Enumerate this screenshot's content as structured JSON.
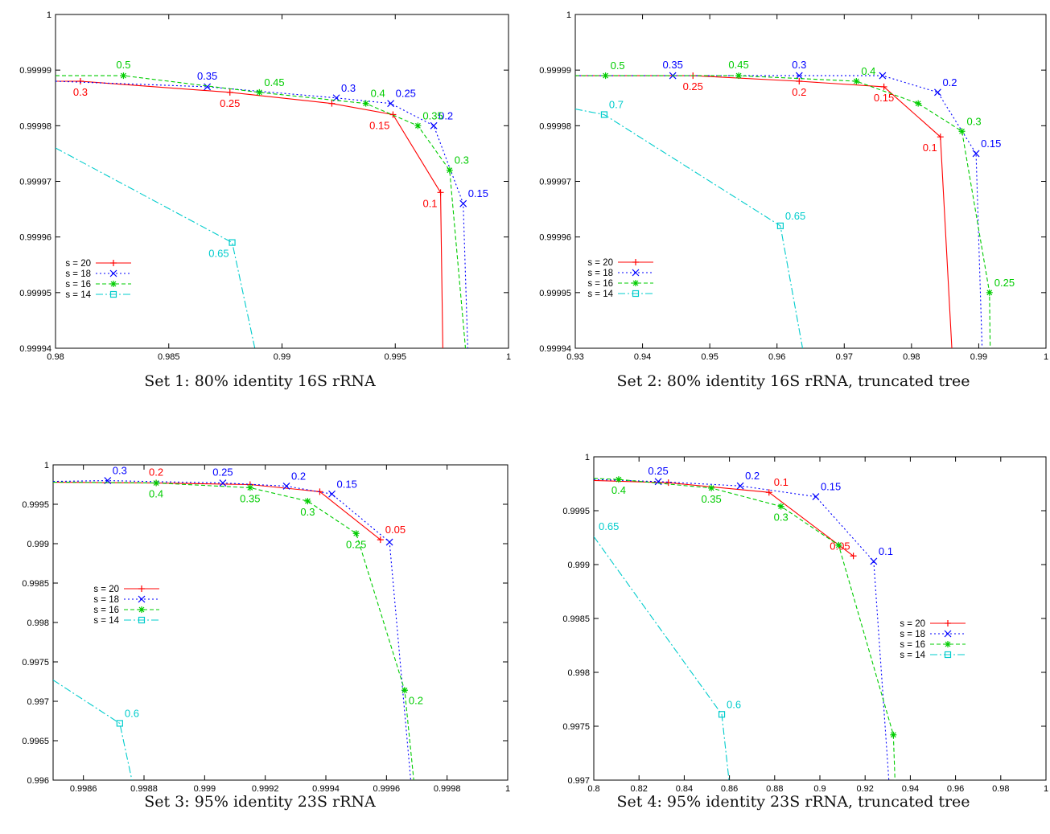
{
  "chart_data": [
    {
      "type": "line",
      "caption": "Set 1: 80% identity 16S rRNA",
      "xlim": [
        0.98,
        1
      ],
      "ylim": [
        0.99994,
        1
      ],
      "xticks": [
        "0.98",
        "0.985",
        "0.99",
        "0.995",
        "1"
      ],
      "yticks": [
        "0.99994",
        "0.99995",
        "0.99996",
        "0.99997",
        "0.99998",
        "0.99999",
        "1"
      ],
      "legend_position": "bottom-left",
      "series": [
        {
          "name": "s = 20",
          "color": "#ff0000",
          "marker": "plus",
          "points": [
            [
              0.98,
              0.999988
            ],
            [
              0.9811,
              0.999988
            ],
            [
              0.9877,
              0.999986
            ],
            [
              0.9922,
              0.999984
            ],
            [
              0.9949,
              0.999982
            ],
            [
              0.997,
              0.999968
            ],
            [
              0.9971,
              0.99994
            ]
          ],
          "labels": [
            {
              "i": 1,
              "text": "0.3",
              "pos": "below"
            },
            {
              "i": 2,
              "text": "0.25",
              "pos": "below"
            },
            {
              "i": 4,
              "text": "0.15",
              "pos": "below-left"
            },
            {
              "i": 5,
              "text": "0.1",
              "pos": "below-left"
            }
          ]
        },
        {
          "name": "s = 18",
          "color": "#0000ff",
          "marker": "x",
          "points": [
            [
              0.98,
              0.999988
            ],
            [
              0.9867,
              0.999987
            ],
            [
              0.9924,
              0.999985
            ],
            [
              0.9948,
              0.999984
            ],
            [
              0.9967,
              0.99998
            ],
            [
              0.998,
              0.999966
            ],
            [
              0.9982,
              0.99994
            ]
          ],
          "labels": [
            {
              "i": 1,
              "text": "0.35",
              "pos": "above"
            },
            {
              "i": 2,
              "text": "0.3",
              "pos": "above-right"
            },
            {
              "i": 3,
              "text": "0.25",
              "pos": "above-right"
            },
            {
              "i": 4,
              "text": "0.2",
              "pos": "above-right"
            },
            {
              "i": 5,
              "text": "0.15",
              "pos": "above-right"
            }
          ]
        },
        {
          "name": "s = 16",
          "color": "#00cc00",
          "marker": "star",
          "points": [
            [
              0.98,
              0.999989
            ],
            [
              0.983,
              0.999989
            ],
            [
              0.989,
              0.999986
            ],
            [
              0.9937,
              0.999984
            ],
            [
              0.996,
              0.99998
            ],
            [
              0.9974,
              0.999972
            ],
            [
              0.9981,
              0.99994
            ]
          ],
          "labels": [
            {
              "i": 1,
              "text": "0.5",
              "pos": "above"
            },
            {
              "i": 2,
              "text": "0.45",
              "pos": "above-right"
            },
            {
              "i": 3,
              "text": "0.4",
              "pos": "above-right"
            },
            {
              "i": 4,
              "text": "0.35",
              "pos": "above-right"
            },
            {
              "i": 5,
              "text": "0.3",
              "pos": "above-right"
            }
          ]
        },
        {
          "name": "s = 14",
          "color": "#00cccc",
          "marker": "square",
          "points": [
            [
              0.98,
              0.999976
            ],
            [
              0.9878,
              0.999959
            ],
            [
              0.9888,
              0.99994
            ]
          ],
          "labels": [
            {
              "i": 1,
              "text": "0.65",
              "pos": "below-left"
            }
          ]
        }
      ]
    },
    {
      "type": "line",
      "caption": "Set 2: 80% identity 16S rRNA, truncated tree",
      "xlim": [
        0.93,
        1
      ],
      "ylim": [
        0.99994,
        1
      ],
      "xticks": [
        "0.93",
        "0.94",
        "0.95",
        "0.96",
        "0.97",
        "0.98",
        "0.99",
        "1"
      ],
      "yticks": [
        "0.99994",
        "0.99995",
        "0.99996",
        "0.99997",
        "0.99998",
        "0.99999",
        "1"
      ],
      "legend_position": "bottom-left",
      "series": [
        {
          "name": "s = 20",
          "color": "#ff0000",
          "marker": "plus",
          "points": [
            [
              0.93,
              0.999989
            ],
            [
              0.9475,
              0.999989
            ],
            [
              0.9633,
              0.999988
            ],
            [
              0.9759,
              0.999987
            ],
            [
              0.9843,
              0.999978
            ],
            [
              0.986,
              0.99994
            ]
          ],
          "labels": [
            {
              "i": 1,
              "text": "0.25",
              "pos": "below"
            },
            {
              "i": 2,
              "text": "0.2",
              "pos": "below"
            },
            {
              "i": 3,
              "text": "0.15",
              "pos": "below"
            },
            {
              "i": 4,
              "text": "0.1",
              "pos": "below-left"
            }
          ]
        },
        {
          "name": "s = 18",
          "color": "#0000ff",
          "marker": "x",
          "points": [
            [
              0.93,
              0.999989
            ],
            [
              0.9445,
              0.999989
            ],
            [
              0.9633,
              0.999989
            ],
            [
              0.9757,
              0.999989
            ],
            [
              0.9839,
              0.999986
            ],
            [
              0.9896,
              0.999975
            ],
            [
              0.9905,
              0.99994
            ]
          ],
          "labels": [
            {
              "i": 1,
              "text": "0.35",
              "pos": "above"
            },
            {
              "i": 2,
              "text": "0.3",
              "pos": "above"
            },
            {
              "i": 4,
              "text": "0.2",
              "pos": "above-right"
            },
            {
              "i": 5,
              "text": "0.15",
              "pos": "above-right"
            }
          ]
        },
        {
          "name": "s = 16",
          "color": "#00cc00",
          "marker": "star",
          "points": [
            [
              0.93,
              0.999989
            ],
            [
              0.9345,
              0.999989
            ],
            [
              0.9543,
              0.999989
            ],
            [
              0.9718,
              0.999988
            ],
            [
              0.981,
              0.999984
            ],
            [
              0.9875,
              0.999979
            ],
            [
              0.9916,
              0.99995
            ],
            [
              0.9917,
              0.99994
            ]
          ],
          "labels": [
            {
              "i": 1,
              "text": "0.5",
              "pos": "above-right"
            },
            {
              "i": 2,
              "text": "0.45",
              "pos": "above"
            },
            {
              "i": 3,
              "text": "0.4",
              "pos": "above-right"
            },
            {
              "i": 5,
              "text": "0.3",
              "pos": "above-right"
            },
            {
              "i": 6,
              "text": "0.25",
              "pos": "above-right"
            }
          ]
        },
        {
          "name": "s = 14",
          "color": "#00cccc",
          "marker": "square",
          "points": [
            [
              0.93,
              0.999983
            ],
            [
              0.9343,
              0.999982
            ],
            [
              0.9605,
              0.999962
            ],
            [
              0.9638,
              0.99994
            ]
          ],
          "labels": [
            {
              "i": 1,
              "text": "0.7",
              "pos": "above-right"
            },
            {
              "i": 2,
              "text": "0.65",
              "pos": "above-right"
            }
          ]
        }
      ]
    },
    {
      "type": "line",
      "caption": "Set 3: 95% identity 23S rRNA",
      "xlim": [
        0.9985,
        1
      ],
      "ylim": [
        0.996,
        1
      ],
      "xticks": [
        "0.9986",
        "0.9988",
        "0.999",
        "0.9992",
        "0.9994",
        "0.9996",
        "0.9998",
        "1"
      ],
      "yticks": [
        "0.996",
        "0.9965",
        "0.997",
        "0.9975",
        "0.998",
        "0.9985",
        "0.999",
        "0.9995",
        "1"
      ],
      "legend_position": "left",
      "series": [
        {
          "name": "s = 20",
          "color": "#ff0000",
          "marker": "plus",
          "points": [
            [
              0.9985,
              0.99978
            ],
            [
              0.99884,
              0.99977
            ],
            [
              0.99915,
              0.99975
            ],
            [
              0.99938,
              0.99966
            ],
            [
              0.99958,
              0.99905
            ]
          ],
          "labels": [
            {
              "i": 1,
              "text": "0.2",
              "pos": "above"
            },
            {
              "i": 4,
              "text": "0.05",
              "pos": "above-right"
            }
          ]
        },
        {
          "name": "s = 18",
          "color": "#0000ff",
          "marker": "x",
          "points": [
            [
              0.9985,
              0.99979
            ],
            [
              0.99868,
              0.9998
            ],
            [
              0.99906,
              0.99977
            ],
            [
              0.99927,
              0.99973
            ],
            [
              0.99942,
              0.99963
            ],
            [
              0.99961,
              0.99902
            ],
            [
              0.99968,
              0.996
            ]
          ],
          "labels": [
            {
              "i": 1,
              "text": "0.3",
              "pos": "above-right"
            },
            {
              "i": 2,
              "text": "0.25",
              "pos": "above"
            },
            {
              "i": 3,
              "text": "0.2",
              "pos": "above-right"
            },
            {
              "i": 4,
              "text": "0.15",
              "pos": "above-right"
            }
          ]
        },
        {
          "name": "s = 16",
          "color": "#00cc00",
          "marker": "star",
          "points": [
            [
              0.9985,
              0.99978
            ],
            [
              0.99884,
              0.99977
            ],
            [
              0.99915,
              0.99971
            ],
            [
              0.99934,
              0.99954
            ],
            [
              0.9995,
              0.99913
            ],
            [
              0.99966,
              0.99714
            ],
            [
              0.99969,
              0.996
            ]
          ],
          "labels": [
            {
              "i": 1,
              "text": "0.4",
              "pos": "below"
            },
            {
              "i": 2,
              "text": "0.35",
              "pos": "below"
            },
            {
              "i": 3,
              "text": "0.3",
              "pos": "below"
            },
            {
              "i": 4,
              "text": "0.25",
              "pos": "below"
            },
            {
              "i": 5,
              "text": "0.2",
              "pos": "below-right"
            }
          ]
        },
        {
          "name": "s = 14",
          "color": "#00cccc",
          "marker": "square",
          "points": [
            [
              0.9985,
              0.99727
            ],
            [
              0.99872,
              0.99672
            ],
            [
              0.99876,
              0.996
            ]
          ],
          "labels": [
            {
              "i": 1,
              "text": "0.6",
              "pos": "above-right"
            }
          ]
        }
      ]
    },
    {
      "type": "line",
      "caption": "Set 4: 95% identity 23S rRNA, truncated tree",
      "xlim": [
        0.8,
        1
      ],
      "ylim": [
        0.997,
        1
      ],
      "xticks": [
        "0.8",
        "0.82",
        "0.84",
        "0.86",
        "0.88",
        "0.9",
        "0.92",
        "0.94",
        "0.96",
        "0.98",
        "1"
      ],
      "yticks": [
        "0.997",
        "0.9975",
        "0.998",
        "0.9985",
        "0.999",
        "0.9995",
        "1"
      ],
      "legend_position": "right",
      "series": [
        {
          "name": "s = 20",
          "color": "#ff0000",
          "marker": "plus",
          "points": [
            [
              0.8,
              0.99978
            ],
            [
              0.833,
              0.99976
            ],
            [
              0.8775,
              0.99967
            ],
            [
              0.9148,
              0.99908
            ]
          ],
          "labels": [
            {
              "i": 2,
              "text": "0.1",
              "pos": "above-right"
            },
            {
              "i": 3,
              "text": "0.05",
              "pos": "above-left"
            }
          ]
        },
        {
          "name": "s = 18",
          "color": "#0000ff",
          "marker": "x",
          "points": [
            [
              0.8,
              0.99979
            ],
            [
              0.8285,
              0.99977
            ],
            [
              0.8648,
              0.99973
            ],
            [
              0.8982,
              0.99963
            ],
            [
              0.9238,
              0.99903
            ],
            [
              0.9305,
              0.997
            ]
          ],
          "labels": [
            {
              "i": 1,
              "text": "0.25",
              "pos": "above"
            },
            {
              "i": 2,
              "text": "0.2",
              "pos": "above-right"
            },
            {
              "i": 3,
              "text": "0.15",
              "pos": "above-right"
            },
            {
              "i": 4,
              "text": "0.1",
              "pos": "above-right"
            }
          ]
        },
        {
          "name": "s = 16",
          "color": "#00cc00",
          "marker": "star",
          "points": [
            [
              0.8,
              0.9998
            ],
            [
              0.811,
              0.99979
            ],
            [
              0.852,
              0.99971
            ],
            [
              0.8828,
              0.99954
            ],
            [
              0.9083,
              0.99918
            ],
            [
              0.9325,
              0.99742
            ],
            [
              0.9332,
              0.997
            ]
          ],
          "labels": [
            {
              "i": 1,
              "text": "0.4",
              "pos": "below"
            },
            {
              "i": 2,
              "text": "0.35",
              "pos": "below"
            },
            {
              "i": 3,
              "text": "0.3",
              "pos": "below"
            }
          ]
        },
        {
          "name": "s = 14",
          "color": "#00cccc",
          "marker": "square",
          "points": [
            [
              0.8,
              0.99926
            ],
            [
              0.8566,
              0.99761
            ],
            [
              0.8598,
              0.997
            ]
          ],
          "labels": [
            {
              "i": 0,
              "text": "0.65",
              "pos": "above-right"
            },
            {
              "i": 1,
              "text": "0.6",
              "pos": "above-right"
            }
          ]
        }
      ]
    }
  ]
}
